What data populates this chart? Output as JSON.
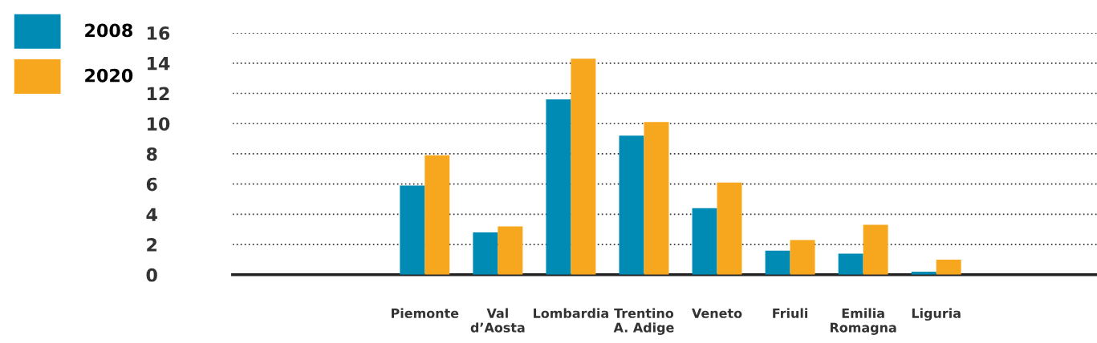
{
  "chart_data": {
    "type": "bar",
    "categories": [
      null,
      null,
      "Piemonte",
      "Val\nd’Aosta",
      "Lombardia",
      "Trentino\nA. Adige",
      "Veneto",
      "Friuli",
      "Emilia\nRomagna",
      "Liguria",
      null,
      null
    ],
    "series": [
      {
        "name": "2008",
        "color": "#008bb5",
        "values": [
          null,
          null,
          5.9,
          2.8,
          11.6,
          9.2,
          4.4,
          1.6,
          1.4,
          0.2,
          null,
          null
        ]
      },
      {
        "name": "2020",
        "color": "#f7a71d",
        "values": [
          null,
          null,
          7.9,
          3.2,
          14.3,
          10.1,
          6.1,
          2.3,
          3.3,
          1.0,
          null,
          null
        ]
      }
    ],
    "ylim": [
      0,
      16
    ],
    "yticks": [
      0,
      2,
      4,
      6,
      8,
      10,
      12,
      14,
      16
    ],
    "grid": "y",
    "legend": "top left"
  }
}
